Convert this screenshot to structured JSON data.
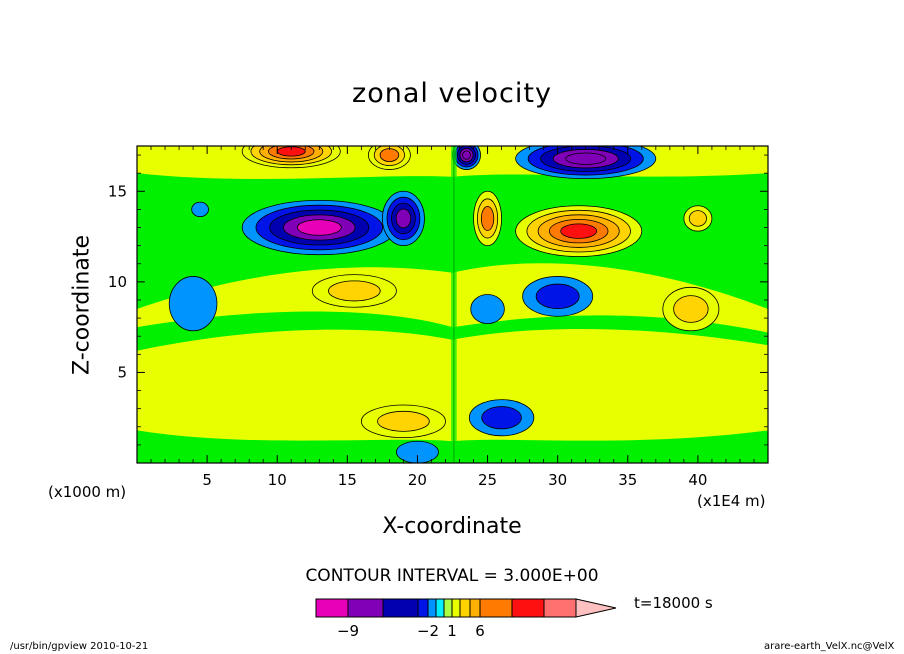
{
  "chart_data": {
    "type": "heatmap",
    "title": "zonal velocity",
    "xlabel": "X-coordinate",
    "ylabel": "Z-coordinate",
    "x_unit": "(x1E4 m)",
    "y_unit": "(x1000 m)",
    "xlim": [
      0,
      45
    ],
    "ylim": [
      0,
      17.5
    ],
    "x_ticks": [
      5,
      10,
      15,
      20,
      25,
      30,
      35,
      40
    ],
    "y_ticks": [
      5,
      10,
      15
    ],
    "contour_interval": "CONTOUR INTERVAL = 3.000E+00",
    "time_label": "t=18000 s",
    "colorbar": {
      "tick_labels": [
        {
          "value": -9,
          "label": "−9"
        },
        {
          "value": -2,
          "label": "−2"
        },
        {
          "value": 1,
          "label": "1"
        },
        {
          "value": 6,
          "label": "6"
        }
      ],
      "colors": [
        "#e800b8",
        "#8000b8",
        "#0000b0",
        "#0014e8",
        "#0094ff",
        "#00f0ff",
        "#a8ff44",
        "#e8ff00",
        "#ffd400",
        "#ffb000",
        "#ff7a00",
        "#ff1010",
        "#ff7070",
        "#ffc0c0"
      ]
    },
    "regions": [
      {
        "x": 11,
        "z": 17.2,
        "value": 9,
        "rx": 3.5,
        "rz": 0.9
      },
      {
        "x": 18,
        "z": 17,
        "value": 6,
        "rx": 1.5,
        "rz": 0.8
      },
      {
        "x": 23.5,
        "z": 17,
        "value": -9,
        "rx": 1,
        "rz": 0.8
      },
      {
        "x": 32,
        "z": 16.8,
        "value": -9,
        "rx": 5,
        "rz": 1.1
      },
      {
        "x": 13,
        "z": 13,
        "value": -10,
        "rx": 5.5,
        "rz": 1.5
      },
      {
        "x": 19,
        "z": 13.5,
        "value": -8,
        "rx": 1.5,
        "rz": 1.5
      },
      {
        "x": 4.5,
        "z": 14,
        "value": -2,
        "rx": 0.6,
        "rz": 0.4
      },
      {
        "x": 25,
        "z": 13.5,
        "value": 6,
        "rx": 1,
        "rz": 1.5
      },
      {
        "x": 31.5,
        "z": 12.8,
        "value": 9,
        "rx": 4.5,
        "rz": 1.4
      },
      {
        "x": 40,
        "z": 13.5,
        "value": 3,
        "rx": 1,
        "rz": 0.7
      },
      {
        "x": 4,
        "z": 8.8,
        "value": -1.5,
        "rx": 1.7,
        "rz": 1.5
      },
      {
        "x": 30,
        "z": 9.2,
        "value": -4,
        "rx": 2.5,
        "rz": 1.1
      },
      {
        "x": 39.5,
        "z": 8.5,
        "value": 3,
        "rx": 2,
        "rz": 1.2
      },
      {
        "x": 15.5,
        "z": 9.5,
        "value": 3,
        "rx": 3,
        "rz": 0.9
      },
      {
        "x": 25,
        "z": 8.5,
        "value": -1.5,
        "rx": 1.2,
        "rz": 0.8
      },
      {
        "x": 19,
        "z": 2.3,
        "value": 3,
        "rx": 3,
        "rz": 0.9
      },
      {
        "x": 26,
        "z": 2.5,
        "value": -3,
        "rx": 2.3,
        "rz": 1
      },
      {
        "x": 20,
        "z": 0.6,
        "value": -2,
        "rx": 1.5,
        "rz": 0.6
      }
    ]
  },
  "footer": {
    "left": "/usr/bin/gpview   2010-10-21",
    "right": "arare-earth_VelX.nc@VelX"
  }
}
